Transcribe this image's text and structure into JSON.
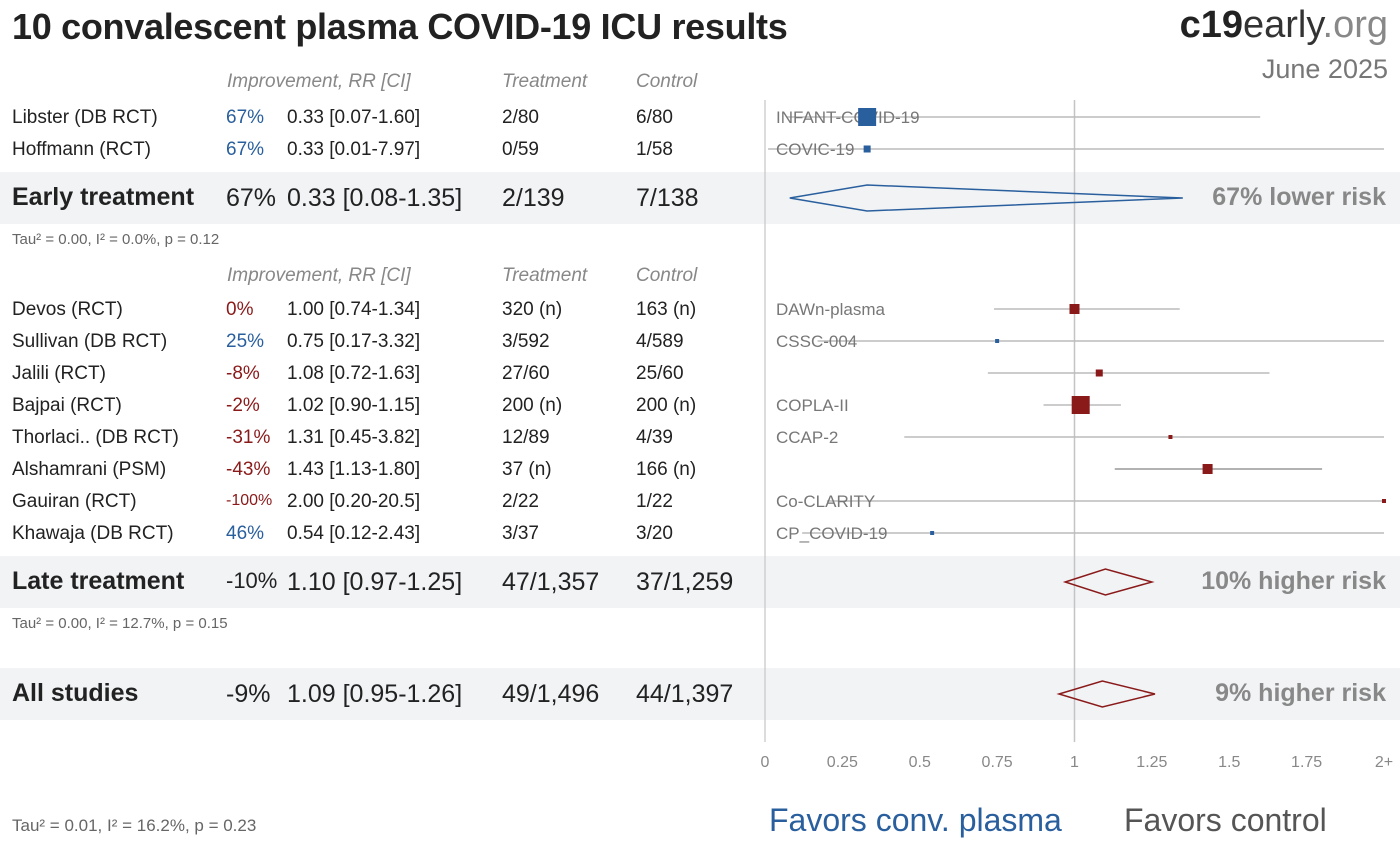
{
  "header": {
    "title": "10 convalescent plasma COVID-19 ICU results",
    "brand_bold": "c19",
    "brand_rest": "early",
    "brand_tld": ".org",
    "date": "June 2025"
  },
  "columns": {
    "improvement": "Improvement, RR [CI]",
    "treatment": "Treatment",
    "control": "Control"
  },
  "groups": {
    "early": {
      "label": "Early treatment",
      "improvement": "67%",
      "rr": "0.33 [0.08-1.35]",
      "treatment": "2/139",
      "control": "7/138",
      "stats": "Tau² = 0.00, I² = 0.0%, p = 0.12",
      "summary": "67% lower risk"
    },
    "late": {
      "label": "Late treatment",
      "improvement": "-10%",
      "rr": "1.10 [0.97-1.25]",
      "treatment": "47/1,357",
      "control": "37/1,259",
      "stats": "Tau² = 0.00, I² = 12.7%, p = 0.15",
      "summary": "10% higher risk"
    },
    "all": {
      "label": "All studies",
      "improvement": "-9%",
      "rr": "1.09 [0.95-1.26]",
      "treatment": "49/1,496",
      "control": "44/1,397",
      "summary": "9% higher risk"
    }
  },
  "overall_stats": "Tau² = 0.01, I² = 16.2%, p = 0.23",
  "favors": {
    "left": "Favors conv. plasma",
    "right": "Favors control"
  },
  "colors": {
    "positive": "#2a5f9e",
    "negative": "#8a1a1a",
    "band": "#f1f3f5"
  },
  "chart_data": {
    "type": "forest",
    "xlim": [
      0,
      2
    ],
    "x_ticks": [
      "0",
      "0.25",
      "0.5",
      "0.75",
      "1",
      "1.25",
      "1.5",
      "1.75",
      "2+"
    ],
    "reference_line": 1,
    "studies": [
      {
        "name": "Libster (DB RCT)",
        "group": "early",
        "improvement": "67%",
        "rr": 0.33,
        "lo": 0.07,
        "hi": 1.6,
        "rr_text": "0.33 [0.07-1.60]",
        "treatment": "2/80",
        "control": "6/80",
        "trial": "INFANT-COVID-19",
        "weight": "large"
      },
      {
        "name": "Hoffmann (RCT)",
        "group": "early",
        "improvement": "67%",
        "rr": 0.33,
        "lo": 0.01,
        "hi": 7.97,
        "rr_text": "0.33 [0.01-7.97]",
        "treatment": "0/59",
        "control": "1/58",
        "trial": "COVIC-19",
        "weight": "small"
      },
      {
        "name": "Devos (RCT)",
        "group": "late",
        "improvement": "0%",
        "rr": 1.0,
        "lo": 0.74,
        "hi": 1.34,
        "rr_text": "1.00 [0.74-1.34]",
        "treatment": "320 (n)",
        "control": "163 (n)",
        "trial": "DAWn-plasma",
        "weight": "medium"
      },
      {
        "name": "Sullivan (DB RCT)",
        "group": "late",
        "improvement": "25%",
        "rr": 0.75,
        "lo": 0.17,
        "hi": 3.32,
        "rr_text": "0.75 [0.17-3.32]",
        "treatment": "3/592",
        "control": "4/589",
        "trial": "CSSC-004",
        "weight": "tiny"
      },
      {
        "name": "Jalili (RCT)",
        "group": "late",
        "improvement": "-8%",
        "rr": 1.08,
        "lo": 0.72,
        "hi": 1.63,
        "rr_text": "1.08 [0.72-1.63]",
        "treatment": "27/60",
        "control": "25/60",
        "trial": "",
        "weight": "small"
      },
      {
        "name": "Bajpai (RCT)",
        "group": "late",
        "improvement": "-2%",
        "rr": 1.02,
        "lo": 0.9,
        "hi": 1.15,
        "rr_text": "1.02 [0.90-1.15]",
        "treatment": "200 (n)",
        "control": "200 (n)",
        "trial": "COPLA-II",
        "weight": "large"
      },
      {
        "name": "Thorlaci.. (DB RCT)",
        "group": "late",
        "improvement": "-31%",
        "rr": 1.31,
        "lo": 0.45,
        "hi": 3.82,
        "rr_text": "1.31 [0.45-3.82]",
        "treatment": "12/89",
        "control": "4/39",
        "trial": "CCAP-2",
        "weight": "tiny"
      },
      {
        "name": "Alshamrani (PSM)",
        "group": "late",
        "improvement": "-43%",
        "rr": 1.43,
        "lo": 1.13,
        "hi": 1.8,
        "rr_text": "1.43 [1.13-1.80]",
        "treatment": "37 (n)",
        "control": "166 (n)",
        "trial": "",
        "weight": "medium"
      },
      {
        "name": "Gauiran (RCT)",
        "group": "late",
        "improvement": "-100%",
        "rr": 2.0,
        "lo": 0.2,
        "hi": 20.5,
        "rr_text": "2.00 [0.20-20.5]",
        "treatment": "2/22",
        "control": "1/22",
        "trial": "Co-CLARITY",
        "weight": "tiny"
      },
      {
        "name": "Khawaja (DB RCT)",
        "group": "late",
        "improvement": "46%",
        "rr": 0.54,
        "lo": 0.12,
        "hi": 2.43,
        "rr_text": "0.54 [0.12-2.43]",
        "treatment": "3/37",
        "control": "3/20",
        "trial": "CP_COVID-19",
        "weight": "tiny"
      }
    ],
    "pooled": [
      {
        "group": "early",
        "rr": 0.33,
        "lo": 0.08,
        "hi": 1.35
      },
      {
        "group": "late",
        "rr": 1.1,
        "lo": 0.97,
        "hi": 1.25
      },
      {
        "group": "all",
        "rr": 1.09,
        "lo": 0.95,
        "hi": 1.26
      }
    ]
  }
}
